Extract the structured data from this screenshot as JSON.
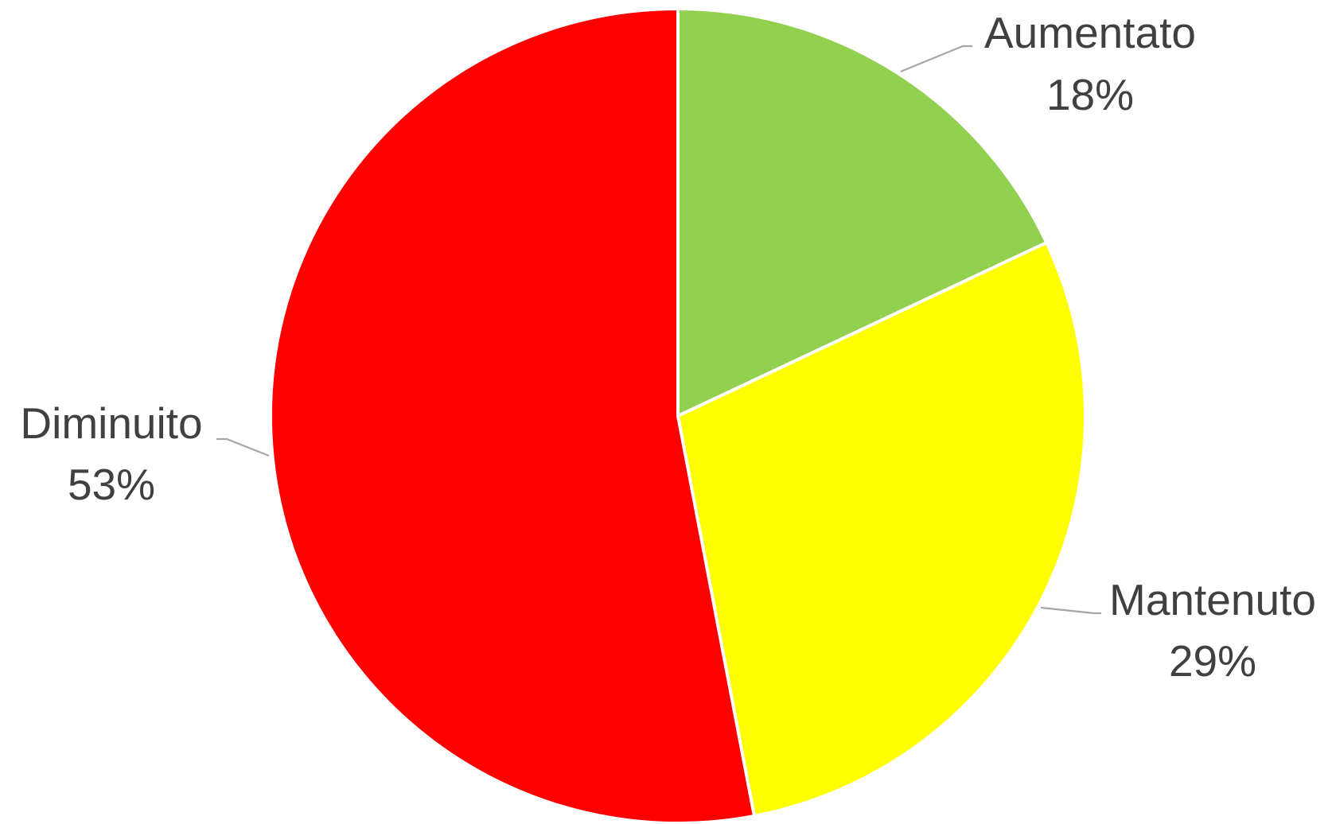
{
  "chart_data": {
    "type": "pie",
    "title": "",
    "start_angle_deg": 0,
    "direction": "clockwise",
    "legend": "none",
    "slices": [
      {
        "label": "Aumentato",
        "value": 18,
        "value_label": "18%",
        "color": "#92D050"
      },
      {
        "label": "Mantenuto",
        "value": 29,
        "value_label": "29%",
        "color": "#FFFF00"
      },
      {
        "label": "Diminuito",
        "value": 53,
        "value_label": "53%",
        "color": "#FF0000"
      }
    ]
  }
}
